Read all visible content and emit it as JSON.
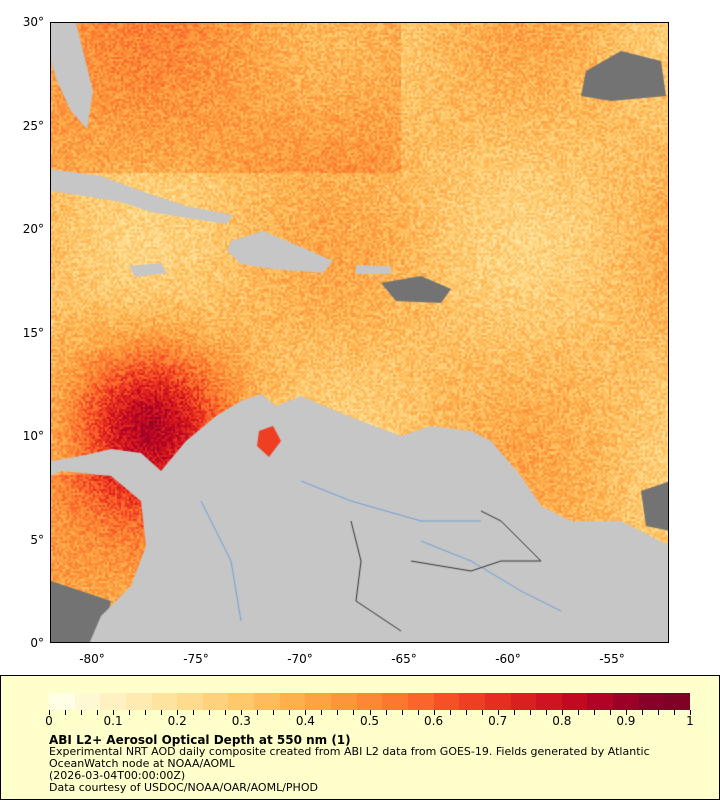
{
  "map": {
    "lon_ticks": [
      "-80°",
      "-75°",
      "-70°",
      "-65°",
      "-60°",
      "-55°"
    ],
    "lat_ticks": [
      "30°",
      "25°",
      "20°",
      "15°",
      "10°",
      "5°",
      "0°"
    ],
    "lon_range": [
      -82,
      -52.25
    ],
    "lat_range": [
      0,
      30
    ],
    "land_color": "#c6c6c6",
    "nodata_color": "#737373"
  },
  "legend": {
    "colorbar_ticks": [
      "0",
      "0.1",
      "0.2",
      "0.3",
      "0.4",
      "0.5",
      "0.6",
      "0.7",
      "0.8",
      "0.9",
      "1"
    ],
    "colorbar_range": [
      0,
      1
    ],
    "colors": [
      "#ffffe6",
      "#fff8d4",
      "#fff1c2",
      "#ffeab0",
      "#fee39f",
      "#fedb8d",
      "#fed27c",
      "#fec86b",
      "#febd5c",
      "#feb04f",
      "#fda343",
      "#fd953c",
      "#fd8736",
      "#fc7730",
      "#fb652b",
      "#f65126",
      "#ee3f22",
      "#e52e1f",
      "#da1f1f",
      "#cf1320",
      "#c10922",
      "#b00325",
      "#9c0026",
      "#88002a",
      "#800026"
    ],
    "title": "ABI L2+ Aerosol Optical Depth at 550 nm (1)",
    "description": "Experimental NRT AOD daily composite created from ABI L2 data from GOES-19. Fields generated by Atlantic OceanWatch node at NOAA/AOML",
    "timestamp": "(2026-03-04T00:00:00Z)",
    "credit": "Data courtesy of USDOC/NOAA/OAR/AOML/PHOD"
  }
}
